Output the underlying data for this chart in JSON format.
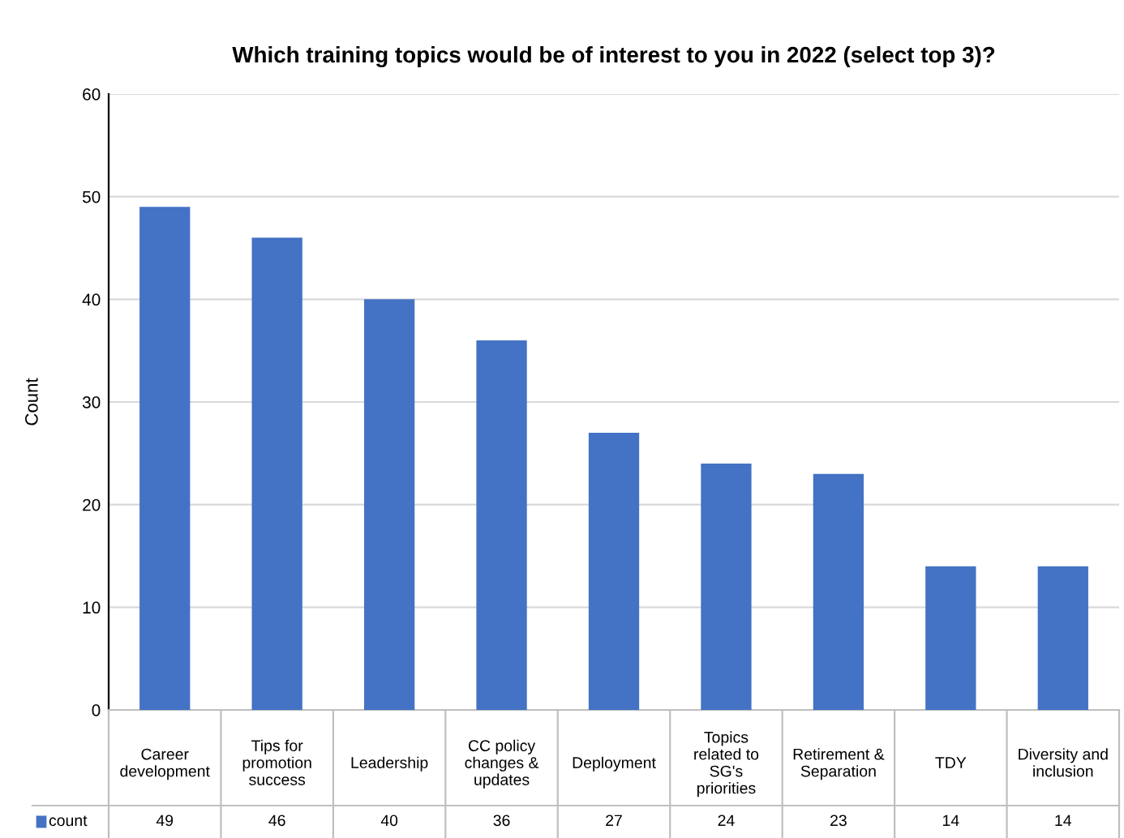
{
  "chart_data": {
    "type": "bar",
    "title": "Which training topics would be of interest to you in 2022 (select top 3)?",
    "ylabel": "Count",
    "categories": [
      "Career development",
      "Tips for promotion success",
      "Leadership",
      "CC policy changes & updates",
      "Deployment",
      "Topics related to SG's priorities",
      "Retirement & Separation",
      "TDY",
      "Diversity and inclusion"
    ],
    "series": [
      {
        "name": "count",
        "color": "#4472c4",
        "values": [
          49,
          46,
          40,
          36,
          27,
          24,
          23,
          14,
          14
        ]
      }
    ],
    "ylim": [
      0,
      60
    ],
    "yticks": [
      0,
      10,
      20,
      30,
      40,
      50,
      60
    ],
    "grid": "y",
    "data_labels": true
  }
}
